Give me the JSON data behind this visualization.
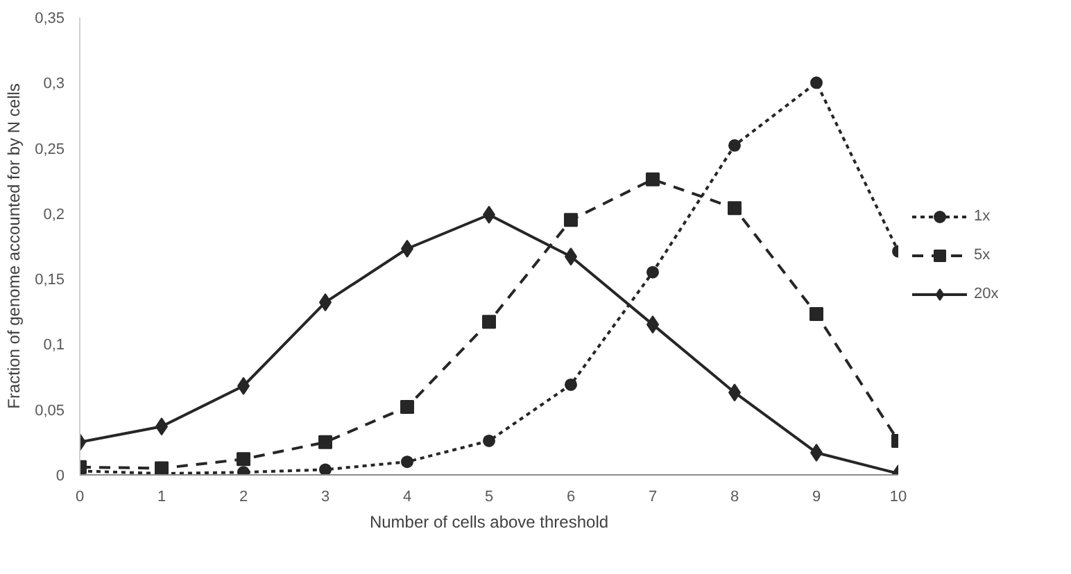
{
  "chart_data": {
    "type": "line",
    "xlabel": "Number of cells above threshold",
    "ylabel": "Fraction of genome accounted for by N cells",
    "x": [
      0,
      1,
      2,
      3,
      4,
      5,
      6,
      7,
      8,
      9,
      10
    ],
    "xlim": [
      0,
      10
    ],
    "xticks": [
      0,
      1,
      2,
      3,
      4,
      5,
      6,
      7,
      8,
      9,
      10
    ],
    "ylim": [
      0,
      0.35
    ],
    "yticks": [
      0,
      {
        "value": 0.05,
        "label": "0,05"
      },
      {
        "value": 0.1,
        "label": "0,1"
      },
      {
        "value": 0.15,
        "label": "0,15"
      },
      {
        "value": 0.2,
        "label": "0,2"
      },
      {
        "value": 0.25,
        "label": "0,25"
      },
      {
        "value": 0.3,
        "label": "0,3"
      },
      {
        "value": 0.35,
        "label": "0,35"
      }
    ],
    "grid": false,
    "legend": "right",
    "series": [
      {
        "name": "1x",
        "color": "#262626",
        "marker": "circle",
        "line_style": "dotted",
        "values": [
          0.003,
          0.001,
          0.002,
          0.004,
          0.01,
          0.026,
          0.069,
          0.155,
          0.252,
          0.3,
          0.171
        ]
      },
      {
        "name": "5x",
        "color": "#262626",
        "marker": "square",
        "line_style": "dashed",
        "values": [
          0.006,
          0.005,
          0.012,
          0.025,
          0.052,
          0.117,
          0.195,
          0.226,
          0.204,
          0.123,
          0.026
        ]
      },
      {
        "name": "20x",
        "color": "#262626",
        "marker": "diamond",
        "line_style": "solid",
        "values": [
          0.025,
          0.037,
          0.068,
          0.132,
          0.173,
          0.199,
          0.167,
          0.115,
          0.063,
          0.017,
          0.001
        ]
      }
    ]
  }
}
